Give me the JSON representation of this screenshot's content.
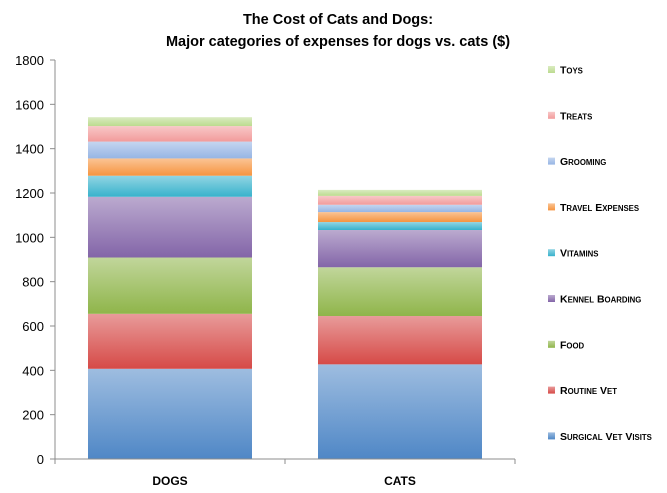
{
  "chart_data": {
    "type": "bar",
    "stacked": true,
    "title": "The Cost of Cats and Dogs:",
    "subtitle": "Major categories of expenses for dogs vs. cats ($)",
    "categories": [
      "Dogs",
      "Cats"
    ],
    "ylim": [
      0,
      1800
    ],
    "yticks": [
      0,
      200,
      400,
      600,
      800,
      1000,
      1200,
      1400,
      1600,
      1800
    ],
    "grid": false,
    "legend_position": "right",
    "series": [
      {
        "name": "Surgical Vet Visits",
        "values": [
          407,
          427
        ],
        "color": "#4f87c6"
      },
      {
        "name": "Routine Vet",
        "values": [
          248,
          218
        ],
        "color": "#d64a47"
      },
      {
        "name": "Food",
        "values": [
          254,
          220
        ],
        "color": "#8fb54a"
      },
      {
        "name": "Kennel Boarding",
        "values": [
          274,
          168
        ],
        "color": "#8365a8"
      },
      {
        "name": "Vitamins",
        "values": [
          95,
          36
        ],
        "color": "#38b2cc"
      },
      {
        "name": "Travel Expenses",
        "values": [
          78,
          45
        ],
        "color": "#f6943f"
      },
      {
        "name": "Grooming",
        "values": [
          76,
          33
        ],
        "color": "#96b5e4"
      },
      {
        "name": "Treats",
        "values": [
          70,
          40
        ],
        "color": "#f29b9b"
      },
      {
        "name": "Toys",
        "values": [
          40,
          27
        ],
        "color": "#bcdb8f"
      }
    ]
  }
}
